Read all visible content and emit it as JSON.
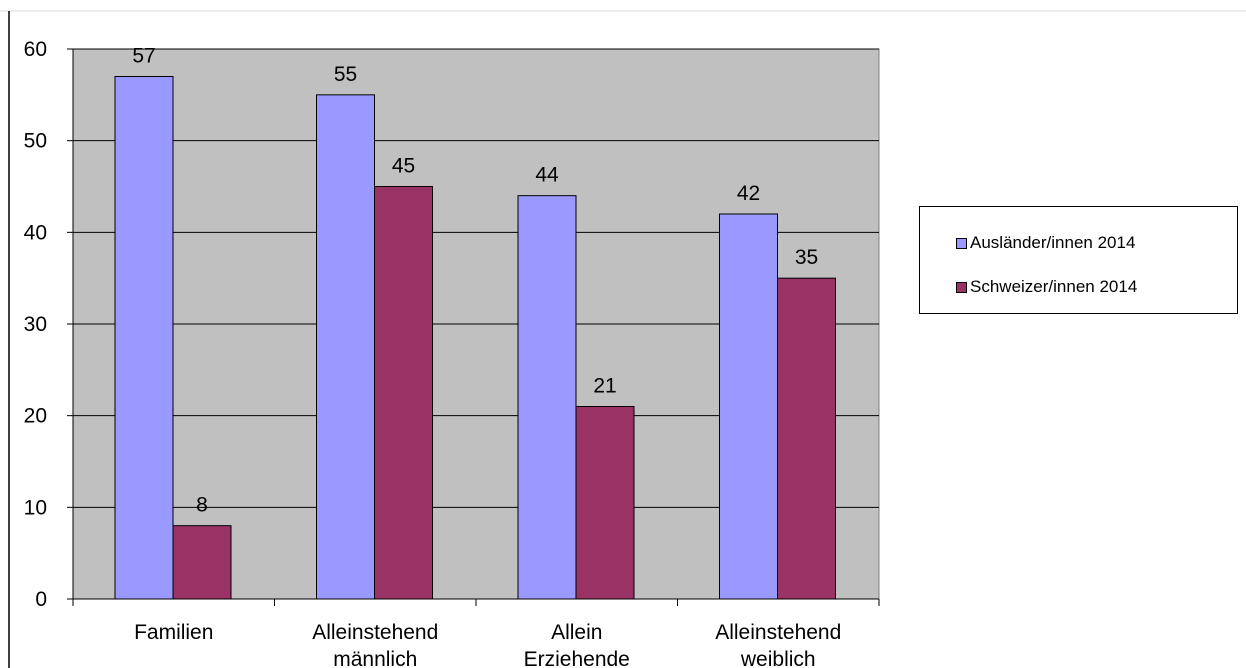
{
  "chart_data": {
    "type": "bar",
    "title": "",
    "xlabel": "",
    "ylabel": "",
    "ylim": [
      0,
      60
    ],
    "yticks": [
      0,
      10,
      20,
      30,
      40,
      50,
      60
    ],
    "grid": true,
    "legend_position": "right",
    "categories": [
      [
        "Familien"
      ],
      [
        "Alleinstehend",
        "männlich"
      ],
      [
        "Allein",
        "Erziehende"
      ],
      [
        "Alleinstehend",
        "weiblich"
      ]
    ],
    "series": [
      {
        "name": "Ausländer/innen 2014",
        "color": "#9999ff",
        "values": [
          57,
          55,
          44,
          42
        ]
      },
      {
        "name": "Schweizer/innen 2014",
        "color": "#993366",
        "values": [
          8,
          45,
          21,
          35
        ]
      }
    ],
    "plot_background": "#c0c0c0"
  },
  "legend": {
    "items": [
      {
        "label": "Ausländer/innen 2014",
        "color": "#9999ff"
      },
      {
        "label": "Schweizer/innen 2014",
        "color": "#993366"
      }
    ]
  }
}
